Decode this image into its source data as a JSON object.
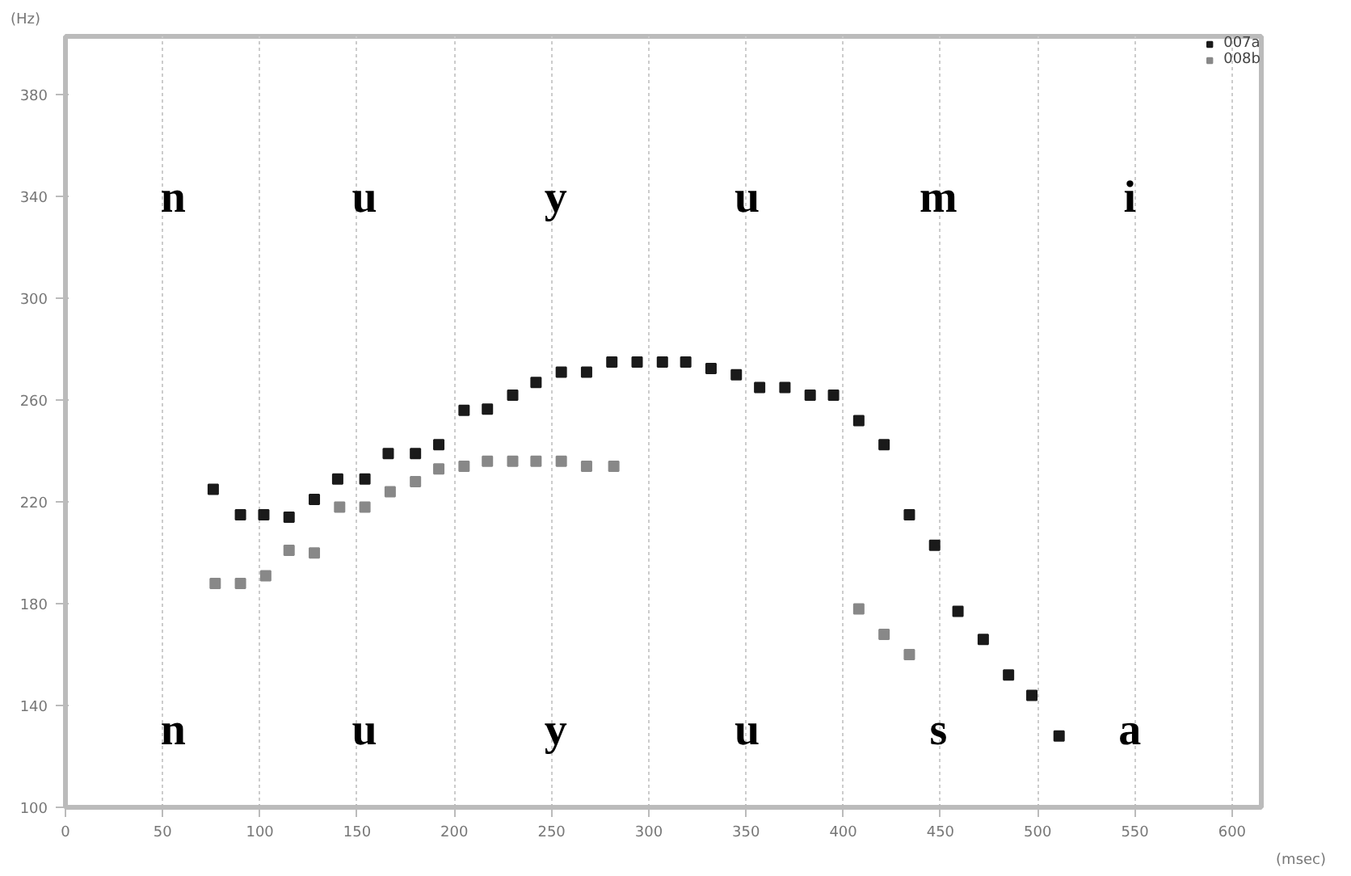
{
  "chart_data": {
    "type": "scatter",
    "ylabel": "(Hz)",
    "xlabel": "(msec)",
    "xlim": [
      0,
      615
    ],
    "ylim": [
      100,
      403
    ],
    "xticks": [
      0,
      50,
      100,
      150,
      200,
      250,
      300,
      350,
      400,
      450,
      500,
      550,
      600
    ],
    "yticks": [
      100,
      140,
      180,
      220,
      260,
      300,
      340,
      380
    ],
    "grid": "x",
    "legend": "top right",
    "marker": "square",
    "series": [
      {
        "name": "007a",
        "color": "#1a1a1a",
        "x": [
          76,
          90,
          102,
          115,
          128,
          140,
          154,
          166,
          180,
          192,
          205,
          217,
          230,
          242,
          255,
          268,
          281,
          294,
          307,
          319,
          332,
          345,
          357,
          370,
          383,
          395,
          408,
          421,
          434,
          447,
          459,
          472,
          485,
          497,
          511
        ],
        "values": [
          225,
          215,
          215,
          214,
          221,
          229,
          229,
          239,
          239,
          242.5,
          256,
          256.5,
          262,
          267,
          271,
          271,
          275,
          275,
          275,
          275,
          272.5,
          270,
          265,
          265,
          262,
          262,
          252,
          242.5,
          215,
          203,
          177,
          166,
          152,
          144,
          128
        ]
      },
      {
        "name": "008b",
        "color": "#888888",
        "x": [
          77,
          90,
          103,
          115,
          128,
          141,
          154,
          167,
          180,
          192,
          205,
          217,
          230,
          242,
          255,
          268,
          282,
          408,
          421,
          434
        ],
        "values": [
          188,
          188,
          191,
          201,
          200,
          218,
          218,
          224,
          228,
          233,
          234,
          236,
          236,
          236,
          236,
          234,
          234,
          178,
          168,
          160
        ]
      }
    ],
    "annotations": [
      "n u y u m i",
      "n u y u s a"
    ]
  }
}
